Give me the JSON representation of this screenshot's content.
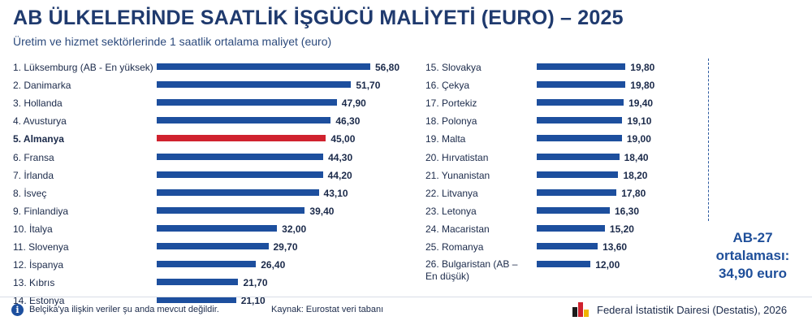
{
  "header": {
    "title": "AB ÜLKELERİNDE SAATLİK İŞGÜCÜ MALİYETİ (EURO) – 2025",
    "subtitle": "Üretim ve hizmet sektörlerinde 1 saatlik ortalama maliyet (euro)"
  },
  "colors": {
    "bar": "#1d4f9e",
    "highlight": "#d0222e",
    "accent": "#1f4f9a"
  },
  "chart_data": {
    "type": "bar",
    "orientation": "horizontal",
    "title": "AB ÜLKELERİNDE SAATLİK İŞGÜCÜ MALİYETİ (EURO) – 2025",
    "unit": "euro",
    "highlight_rank": 5,
    "columns": [
      [
        {
          "label": "1. Lüksemburg (AB - En yüksek)",
          "value": 56.8,
          "value_label": "56,80"
        },
        {
          "label": "2. Danimarka",
          "value": 51.7,
          "value_label": "51,70"
        },
        {
          "label": "3. Hollanda",
          "value": 47.9,
          "value_label": "47,90"
        },
        {
          "label": "4. Avusturya",
          "value": 46.3,
          "value_label": "46,30"
        },
        {
          "label": "5. Almanya",
          "value": 45.0,
          "value_label": "45,00"
        },
        {
          "label": "6. Fransa",
          "value": 44.3,
          "value_label": "44,30"
        },
        {
          "label": "7. İrlanda",
          "value": 44.2,
          "value_label": "44,20"
        },
        {
          "label": "8. İsveç",
          "value": 43.1,
          "value_label": "43,10"
        },
        {
          "label": "9. Finlandiya",
          "value": 39.4,
          "value_label": "39,40"
        },
        {
          "label": "10. İtalya",
          "value": 32.0,
          "value_label": "32,00"
        },
        {
          "label": "11. Slovenya",
          "value": 29.7,
          "value_label": "29,70"
        },
        {
          "label": "12. İspanya",
          "value": 26.4,
          "value_label": "26,40"
        },
        {
          "label": "13. Kıbrıs",
          "value": 21.7,
          "value_label": "21,70"
        },
        {
          "label": "14. Estonya",
          "value": 21.1,
          "value_label": "21,10"
        }
      ],
      [
        {
          "label": "15. Slovakya",
          "value": 19.8,
          "value_label": "19,80"
        },
        {
          "label": "16. Çekya",
          "value": 19.8,
          "value_label": "19,80"
        },
        {
          "label": "17. Portekiz",
          "value": 19.4,
          "value_label": "19,40"
        },
        {
          "label": "18. Polonya",
          "value": 19.1,
          "value_label": "19,10"
        },
        {
          "label": "19. Malta",
          "value": 19.0,
          "value_label": "19,00"
        },
        {
          "label": "20. Hırvatistan",
          "value": 18.4,
          "value_label": "18,40"
        },
        {
          "label": "21. Yunanistan",
          "value": 18.2,
          "value_label": "18,20"
        },
        {
          "label": "22. Litvanya",
          "value": 17.8,
          "value_label": "17,80"
        },
        {
          "label": "23. Letonya",
          "value": 16.3,
          "value_label": "16,30"
        },
        {
          "label": "24. Macaristan",
          "value": 15.2,
          "value_label": "15,20"
        },
        {
          "label": "25. Romanya",
          "value": 13.6,
          "value_label": "13,60"
        },
        {
          "label": "26. Bulgaristan (AB – En düşük)",
          "value": 12.0,
          "value_label": "12,00"
        }
      ]
    ],
    "average": {
      "label": "AB-27 ortalaması: 34,90 euro",
      "value": 34.9
    }
  },
  "footer": {
    "info_icon": "info-icon",
    "note": "Belçika'ya ilişkin veriler şu anda mevcut değildir.",
    "source": "Kaynak: Eurostat veri tabanı",
    "publisher": "Federal İstatistik Dairesi (Destatis), 2026"
  }
}
